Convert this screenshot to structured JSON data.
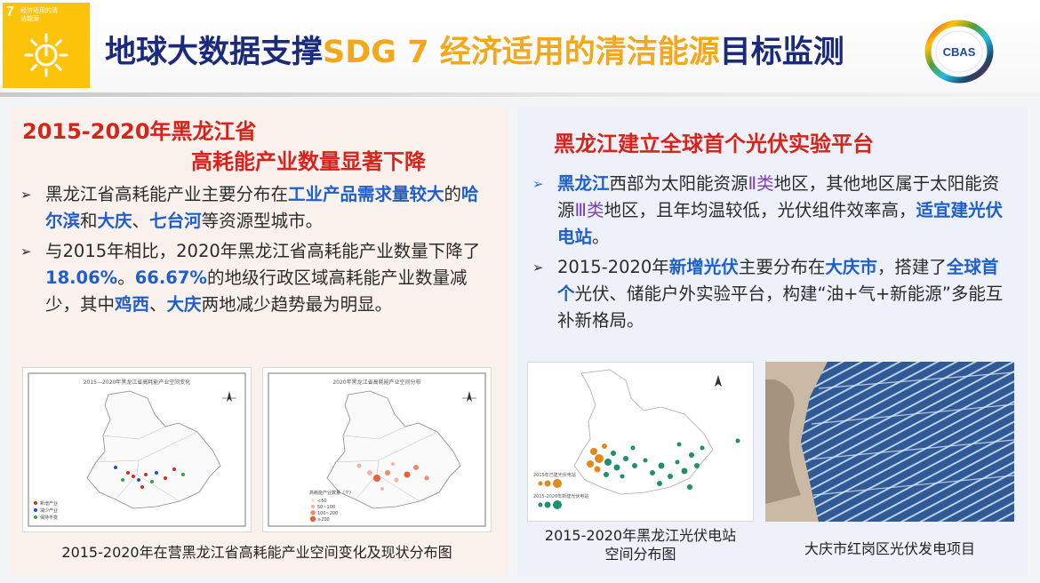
{
  "header": {
    "sdg_number": "7",
    "sdg_name": "经济适用的清洁能源",
    "title_part1": "地球大数据支撑",
    "title_part2": "SDG 7 经济适用的清洁能源",
    "title_part3": "目标监测",
    "logo_text": "CBAS"
  },
  "left": {
    "heading_line1": "2015-2020年黑龙江省",
    "heading_line2": "高耗能产业数量显著下降",
    "bullet1": [
      {
        "t": "黑龙江省高耗能产业主要分布在",
        "h": false
      },
      {
        "t": "工业产品需求量较大",
        "h": true
      },
      {
        "t": "的",
        "h": false
      },
      {
        "t": "哈尔滨",
        "h": true
      },
      {
        "t": "和",
        "h": false
      },
      {
        "t": "大庆",
        "h": true
      },
      {
        "t": "、",
        "h": false
      },
      {
        "t": "七台河",
        "h": true
      },
      {
        "t": "等资源型城市。",
        "h": false
      }
    ],
    "bullet2": [
      {
        "t": "与2015年相比，2020年黑龙江省高耗能产业数量下降了",
        "h": false
      },
      {
        "t": "18.06%",
        "h": true
      },
      {
        "t": "。",
        "h": false
      },
      {
        "t": "66.67%",
        "h": true
      },
      {
        "t": "的地级行政区域高耗能产业数量减少，其中",
        "h": false
      },
      {
        "t": "鸡西",
        "h": true
      },
      {
        "t": "、",
        "h": false
      },
      {
        "t": "大庆",
        "h": true
      },
      {
        "t": "两地减少趋势最为明显。",
        "h": false
      }
    ],
    "map1_title": "2015—2020年黑龙江省高耗能产业空间变化",
    "map2_title": "2020年黑龙江省高耗能产业空间分布",
    "map1_legend": [
      "新增产业",
      "减少产业",
      "保持不变"
    ],
    "map2_legend": [
      "<50",
      "50~100",
      "100~200",
      "≥200"
    ],
    "map2_legend_title": "高耗能产业数量（个）",
    "caption": "2015-2020年在营黑龙江省高耗能产业空间变化及现状分布图"
  },
  "right": {
    "heading": "黑龙江建立全球首个光伏实验平台",
    "bullet1": [
      {
        "t": "黑龙江",
        "h": true
      },
      {
        "t": "西部为太阳能资源",
        "h": false
      },
      {
        "t": "Ⅱ类",
        "h": "p"
      },
      {
        "t": "地区，其他地区属于太阳能资源",
        "h": false
      },
      {
        "t": "Ⅲ类",
        "h": "p"
      },
      {
        "t": "地区，且年均温较低，光伏组件效率高，",
        "h": false
      },
      {
        "t": "适宜建光伏电站",
        "h": true
      },
      {
        "t": "。",
        "h": false
      }
    ],
    "bullet2": [
      {
        "t": "2015-2020年",
        "h": false
      },
      {
        "t": "新增光伏",
        "h": true
      },
      {
        "t": "主要分布在",
        "h": false
      },
      {
        "t": "大庆市",
        "h": true
      },
      {
        "t": "，搭建了",
        "h": false
      },
      {
        "t": "全球首个",
        "h": true
      },
      {
        "t": "光伏、储能户外实验平台，构建“油+气+新能源”多能互补新格局。",
        "h": false
      }
    ],
    "pv_map_legend": [
      "2015年已建光伏电站",
      "2015-2020年新建光伏电站"
    ],
    "caption_map_line1": "2015-2020年黑龙江光伏电站",
    "caption_map_line2": "空间分布图",
    "caption_photo": "大庆市红岗区光伏发电项目"
  },
  "colors": {
    "title_dark": "#1c2a7a",
    "title_gold": "#f2a81c",
    "heading_red": "#d6241c",
    "highlight_blue": "#1f5fc9",
    "highlight_purple": "#7b3fb5",
    "sdg_yellow": "#fcc30b",
    "pv_orange": "#e08a1e",
    "pv_teal": "#1f8f6e"
  }
}
